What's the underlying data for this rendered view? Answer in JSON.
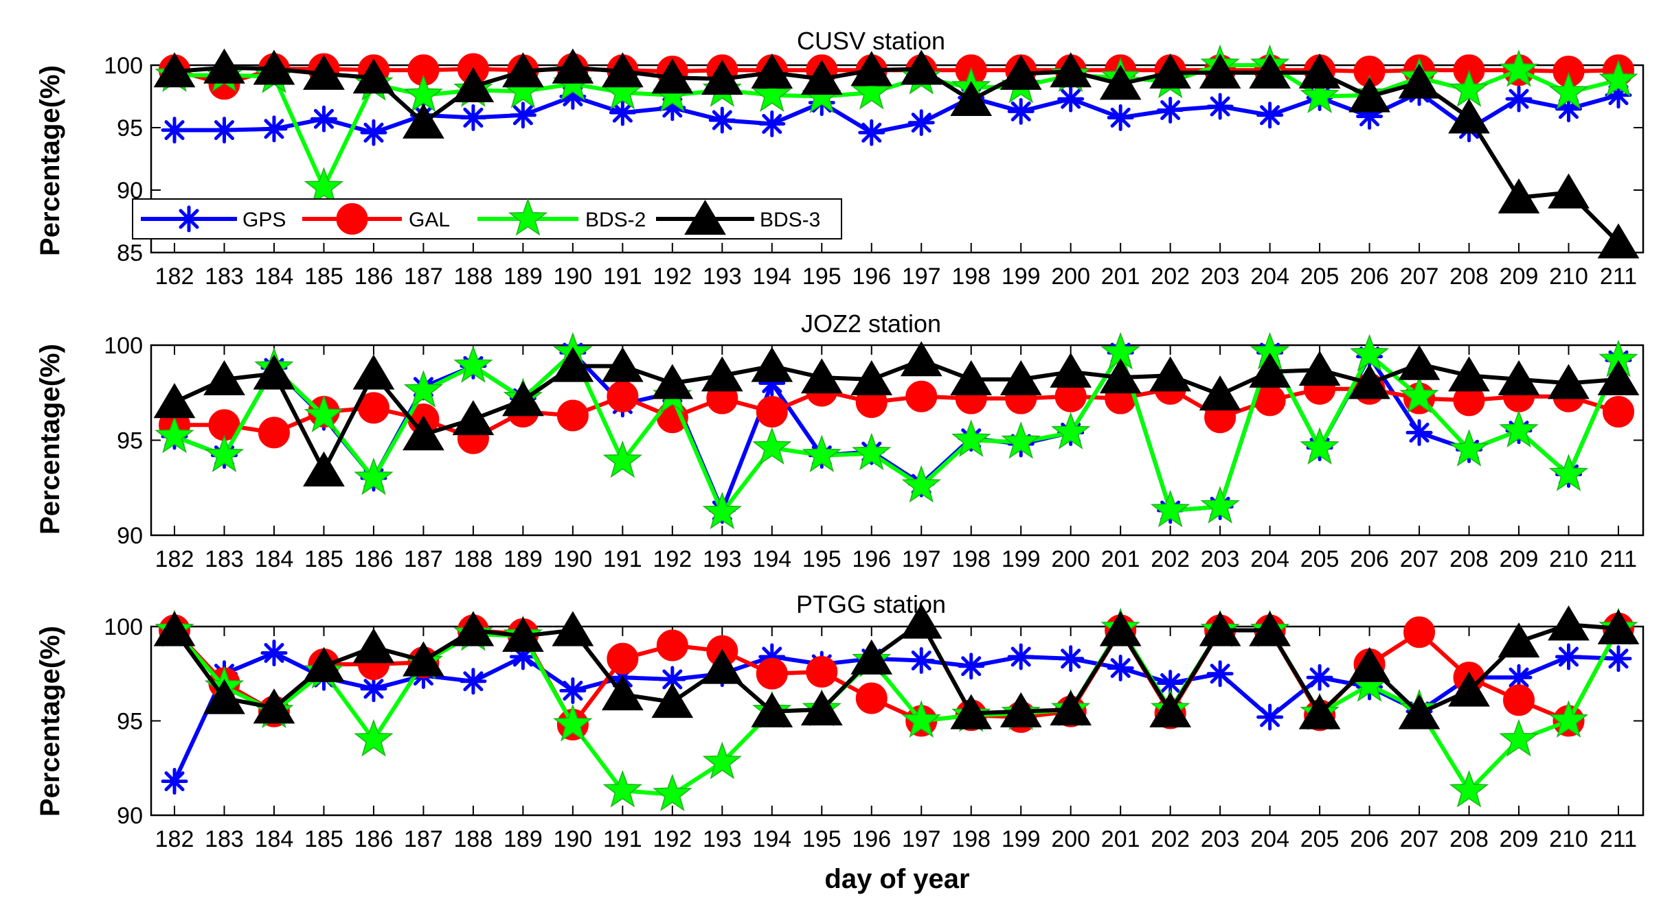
{
  "chart_data": [
    {
      "type": "line",
      "title": "CUSV station",
      "xlabel": "",
      "ylabel": "Percentage(%)",
      "ylim": [
        85,
        100
      ],
      "yticks": [
        85,
        90,
        95,
        100
      ],
      "grid": false,
      "legend": "bottom-left",
      "x": [
        "182",
        "183",
        "184",
        "185",
        "186",
        "187",
        "188",
        "189",
        "190",
        "191",
        "192",
        "193",
        "194",
        "195",
        "196",
        "197",
        "198",
        "199",
        "200",
        "201",
        "202",
        "203",
        "204",
        "205",
        "206",
        "207",
        "208",
        "209",
        "210",
        "211"
      ],
      "series": [
        {
          "name": "GPS",
          "color": "#0000ff",
          "marker": "asterisk",
          "values": [
            94.8,
            94.8,
            94.9,
            95.7,
            94.6,
            96.0,
            95.8,
            96.0,
            97.5,
            96.2,
            96.6,
            95.6,
            95.3,
            97.0,
            94.6,
            95.4,
            97.4,
            96.3,
            97.3,
            95.8,
            96.4,
            96.7,
            96.0,
            97.4,
            95.9,
            97.8,
            94.9,
            97.3,
            96.5,
            97.6
          ]
        },
        {
          "name": "GAL",
          "color": "#ff0000",
          "marker": "circle",
          "values": [
            99.6,
            98.5,
            99.7,
            99.7,
            99.6,
            99.6,
            99.7,
            99.6,
            99.7,
            99.6,
            99.5,
            99.6,
            99.6,
            99.6,
            99.6,
            99.6,
            99.6,
            99.6,
            99.6,
            99.6,
            99.6,
            99.6,
            99.6,
            99.6,
            99.5,
            99.6,
            99.6,
            99.6,
            99.5,
            99.6
          ]
        },
        {
          "name": "BDS-2",
          "color": "#00ff00",
          "marker": "star",
          "values": [
            99.2,
            99.2,
            99.1,
            90.2,
            98.5,
            97.6,
            98.0,
            97.9,
            98.5,
            97.8,
            97.6,
            98.0,
            97.6,
            97.5,
            97.8,
            99.0,
            98.2,
            98.3,
            99.2,
            99.0,
            98.7,
            100.0,
            100.0,
            97.5,
            97.6,
            99.0,
            98.0,
            99.6,
            97.8,
            98.8
          ]
        },
        {
          "name": "BDS-3",
          "color": "#000000",
          "marker": "triangle",
          "values": [
            99.5,
            99.8,
            99.7,
            99.3,
            99.0,
            95.4,
            98.3,
            99.5,
            99.8,
            99.5,
            99.0,
            98.9,
            99.4,
            98.9,
            99.6,
            99.7,
            97.2,
            99.3,
            99.5,
            98.5,
            99.4,
            99.4,
            99.4,
            99.4,
            97.5,
            98.6,
            95.8,
            89.4,
            89.8,
            85.8
          ]
        }
      ]
    },
    {
      "type": "line",
      "title": "JOZ2 station",
      "xlabel": "",
      "ylabel": "Percentage(%)",
      "ylim": [
        90,
        100
      ],
      "yticks": [
        90,
        95,
        100
      ],
      "grid": false,
      "legend": "none",
      "x": [
        "182",
        "183",
        "184",
        "185",
        "186",
        "187",
        "188",
        "189",
        "190",
        "191",
        "192",
        "193",
        "194",
        "195",
        "196",
        "197",
        "198",
        "199",
        "200",
        "201",
        "202",
        "203",
        "204",
        "205",
        "206",
        "207",
        "208",
        "209",
        "210",
        "211"
      ],
      "series": [
        {
          "name": "GPS",
          "color": "#0000ff",
          "marker": "asterisk",
          "values": [
            95.2,
            94.2,
            98.8,
            96.2,
            93.0,
            97.8,
            98.9,
            97.2,
            99.6,
            96.9,
            97.5,
            91.3,
            98.0,
            94.2,
            94.4,
            92.7,
            95.1,
            94.8,
            95.4,
            99.6,
            91.3,
            91.5,
            99.6,
            94.6,
            99.4,
            95.4,
            94.5,
            95.5,
            93.2,
            99.2
          ]
        },
        {
          "name": "GAL",
          "color": "#ff0000",
          "marker": "circle",
          "values": [
            95.8,
            95.8,
            95.4,
            96.5,
            96.7,
            96.1,
            95.1,
            96.5,
            96.3,
            97.3,
            96.2,
            97.2,
            96.5,
            97.6,
            97.0,
            97.3,
            97.2,
            97.2,
            97.3,
            97.2,
            97.7,
            96.2,
            97.1,
            97.7,
            97.7,
            97.2,
            97.1,
            97.3,
            97.3,
            96.5
          ]
        },
        {
          "name": "BDS-2",
          "color": "#00ff00",
          "marker": "star",
          "values": [
            95.2,
            94.2,
            98.8,
            96.3,
            93.0,
            97.6,
            98.9,
            97.2,
            99.6,
            93.9,
            97.3,
            91.2,
            94.6,
            94.2,
            94.3,
            92.6,
            95.0,
            94.9,
            95.4,
            99.6,
            91.3,
            91.5,
            99.6,
            94.6,
            99.5,
            97.3,
            94.5,
            95.5,
            93.2,
            99.2
          ]
        },
        {
          "name": "BDS-3",
          "color": "#000000",
          "marker": "triangle",
          "values": [
            97.0,
            98.2,
            98.5,
            93.4,
            98.5,
            95.3,
            96.1,
            97.1,
            98.9,
            98.9,
            98.0,
            98.4,
            98.9,
            98.3,
            98.2,
            99.2,
            98.2,
            98.2,
            98.6,
            98.3,
            98.4,
            97.4,
            98.6,
            98.7,
            98.0,
            99.0,
            98.4,
            98.2,
            98.0,
            98.2
          ]
        }
      ]
    },
    {
      "type": "line",
      "title": "PTGG station",
      "xlabel": "day of year",
      "ylabel": "Percentage(%)",
      "ylim": [
        90,
        100
      ],
      "yticks": [
        90,
        95,
        100
      ],
      "grid": false,
      "legend": "none",
      "x": [
        "182",
        "183",
        "184",
        "185",
        "186",
        "187",
        "188",
        "189",
        "190",
        "191",
        "192",
        "193",
        "194",
        "195",
        "196",
        "197",
        "198",
        "199",
        "200",
        "201",
        "202",
        "203",
        "204",
        "205",
        "206",
        "207",
        "208",
        "209",
        "210",
        "211"
      ],
      "series": [
        {
          "name": "GPS",
          "color": "#0000ff",
          "marker": "asterisk",
          "values": [
            91.8,
            97.5,
            98.6,
            97.3,
            96.7,
            97.4,
            97.1,
            98.4,
            96.6,
            97.3,
            97.2,
            97.5,
            98.4,
            98.0,
            98.3,
            98.2,
            97.9,
            98.4,
            98.3,
            97.8,
            97.0,
            97.5,
            95.2,
            97.3,
            96.8,
            95.5,
            97.3,
            97.3,
            98.4,
            98.3
          ]
        },
        {
          "name": "GAL",
          "color": "#ff0000",
          "marker": "circle",
          "values": [
            99.8,
            97.0,
            95.5,
            98.0,
            98.0,
            98.1,
            99.8,
            99.6,
            94.8,
            98.3,
            99.0,
            98.7,
            97.5,
            97.6,
            96.2,
            95.0,
            95.3,
            95.2,
            95.5,
            99.8,
            95.4,
            99.8,
            99.8,
            95.3,
            98.0,
            99.7,
            97.3,
            96.1,
            95.0,
            99.9
          ]
        },
        {
          "name": "BDS-2",
          "color": "#00ff00",
          "marker": "star",
          "values": [
            99.8,
            96.8,
            95.5,
            97.6,
            94.0,
            98.1,
            99.6,
            99.5,
            94.8,
            91.3,
            91.1,
            92.8,
            95.5,
            95.6,
            98.2,
            95.0,
            95.3,
            95.4,
            95.6,
            99.9,
            95.6,
            99.8,
            99.8,
            95.4,
            96.9,
            95.6,
            91.3,
            94.0,
            95.0,
            99.9
          ]
        },
        {
          "name": "BDS-3",
          "color": "#000000",
          "marker": "triangle",
          "values": [
            99.8,
            96.2,
            95.7,
            97.9,
            98.9,
            98.2,
            99.8,
            99.5,
            99.8,
            96.4,
            96.0,
            97.8,
            95.5,
            95.6,
            98.3,
            100.2,
            95.4,
            95.5,
            95.6,
            99.8,
            95.5,
            99.8,
            99.8,
            95.4,
            97.9,
            95.4,
            96.6,
            99.2,
            100.1,
            99.9
          ]
        }
      ]
    }
  ]
}
